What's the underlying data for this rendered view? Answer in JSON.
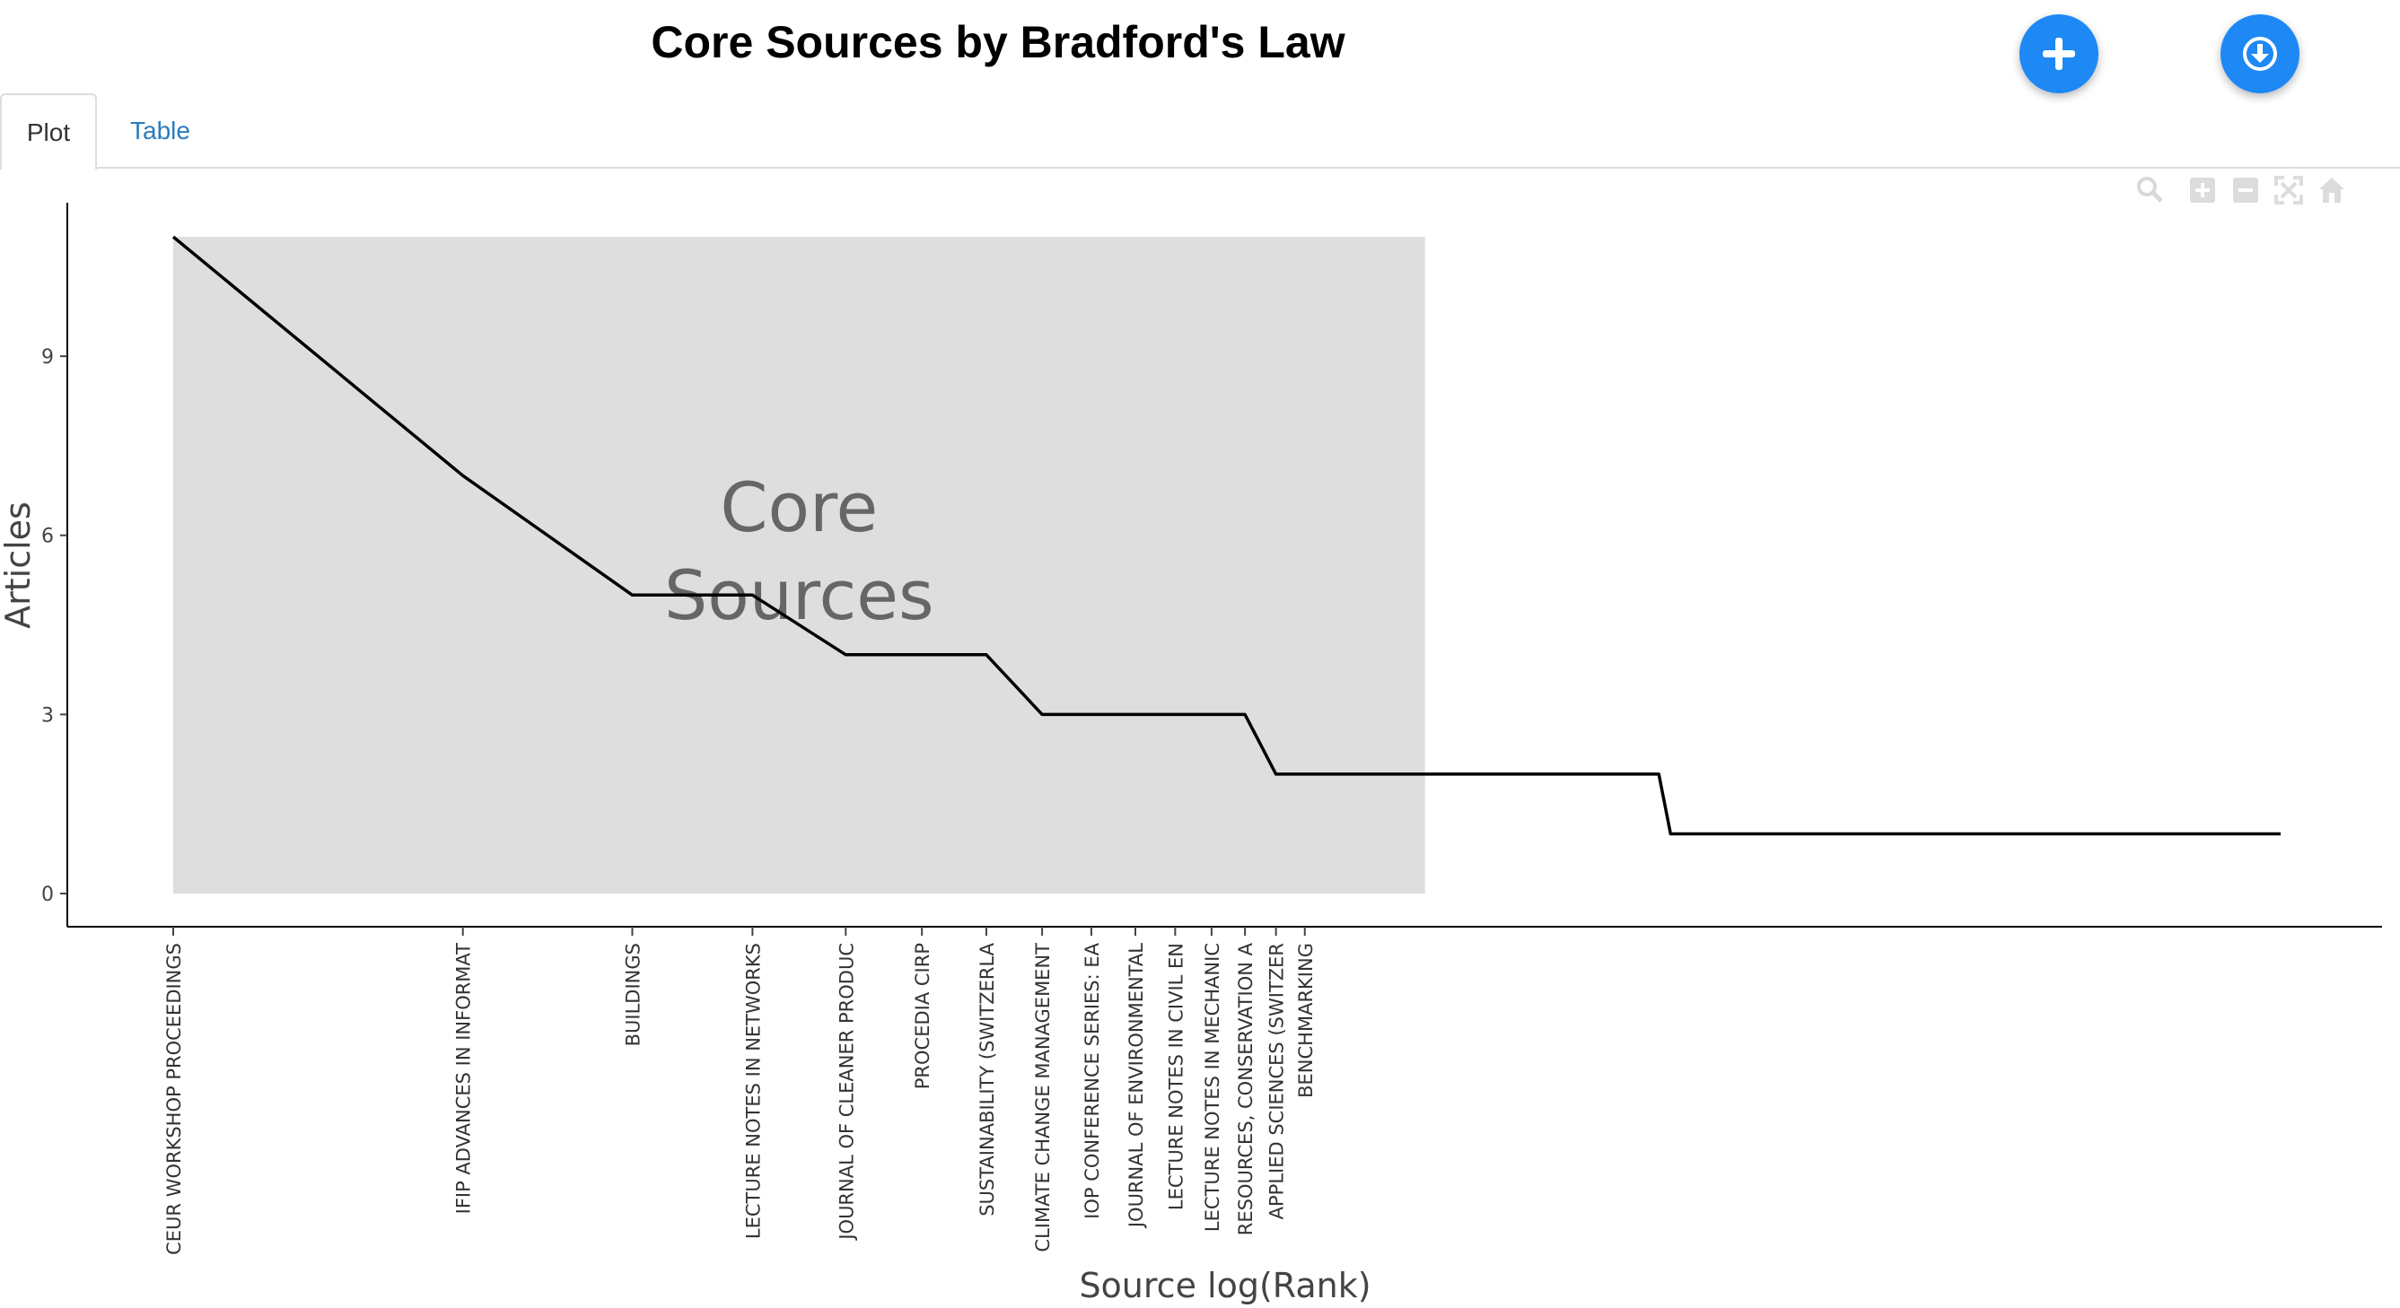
{
  "page": {
    "title": "Core Sources by Bradford's Law"
  },
  "buttons": {
    "add_icon": "plus-icon",
    "download_icon": "download-circle-icon"
  },
  "tabs": [
    {
      "label": "Plot",
      "active": true
    },
    {
      "label": "Table",
      "active": false
    }
  ],
  "modebar": {
    "icons": [
      "zoom-icon",
      "zoom-in-icon",
      "zoom-out-icon",
      "autoscale-icon",
      "reset-axes-icon"
    ]
  },
  "colors": {
    "accent": "#1e88f5",
    "tab_link": "#2a7bbd",
    "core_zone": "#dedede",
    "line": "#000000"
  },
  "chart_data": {
    "type": "line",
    "title": "",
    "xlabel": "Source log(Rank)",
    "ylabel": "Articles",
    "x_scale": "log",
    "ylim": [
      0,
      11
    ],
    "yticks": [
      0,
      3,
      6,
      9
    ],
    "grid": false,
    "annotation": {
      "text_lines": [
        "Core",
        "Sources"
      ]
    },
    "core_zone": {
      "from_rank": 1,
      "to_rank": 20
    },
    "points": [
      {
        "rank": 1,
        "articles": 11,
        "label": "CEUR WORKSHOP PROCEEDINGS"
      },
      {
        "rank": 2,
        "articles": 7,
        "label": "IFIP ADVANCES IN INFORMAT"
      },
      {
        "rank": 3,
        "articles": 5,
        "label": "BUILDINGS"
      },
      {
        "rank": 4,
        "articles": 5,
        "label": "LECTURE NOTES IN NETWORKS"
      },
      {
        "rank": 5,
        "articles": 4,
        "label": "JOURNAL OF CLEANER PRODUC"
      },
      {
        "rank": 6,
        "articles": 4,
        "label": "PROCEDIA CIRP"
      },
      {
        "rank": 7,
        "articles": 4,
        "label": "SUSTAINABILITY (SWITZERLA"
      },
      {
        "rank": 8,
        "articles": 3,
        "label": "CLIMATE CHANGE MANAGEMENT"
      },
      {
        "rank": 9,
        "articles": 3,
        "label": "IOP CONFERENCE SERIES: EA"
      },
      {
        "rank": 10,
        "articles": 3,
        "label": "JOURNAL OF ENVIRONMENTAL"
      },
      {
        "rank": 11,
        "articles": 3,
        "label": "LECTURE NOTES IN CIVIL EN"
      },
      {
        "rank": 12,
        "articles": 3,
        "label": "LECTURE NOTES IN MECHANIC"
      },
      {
        "rank": 13,
        "articles": 3,
        "label": "RESOURCES, CONSERVATION A"
      },
      {
        "rank": 14,
        "articles": 2,
        "label": "APPLIED SCIENCES (SWITZER"
      },
      {
        "rank": 15,
        "articles": 2,
        "label": "BENCHMARKING"
      },
      {
        "rank": 35,
        "articles": 2,
        "label": ""
      },
      {
        "rank": 36,
        "articles": 1,
        "label": ""
      },
      {
        "rank": 155,
        "articles": 1,
        "label": ""
      }
    ]
  }
}
